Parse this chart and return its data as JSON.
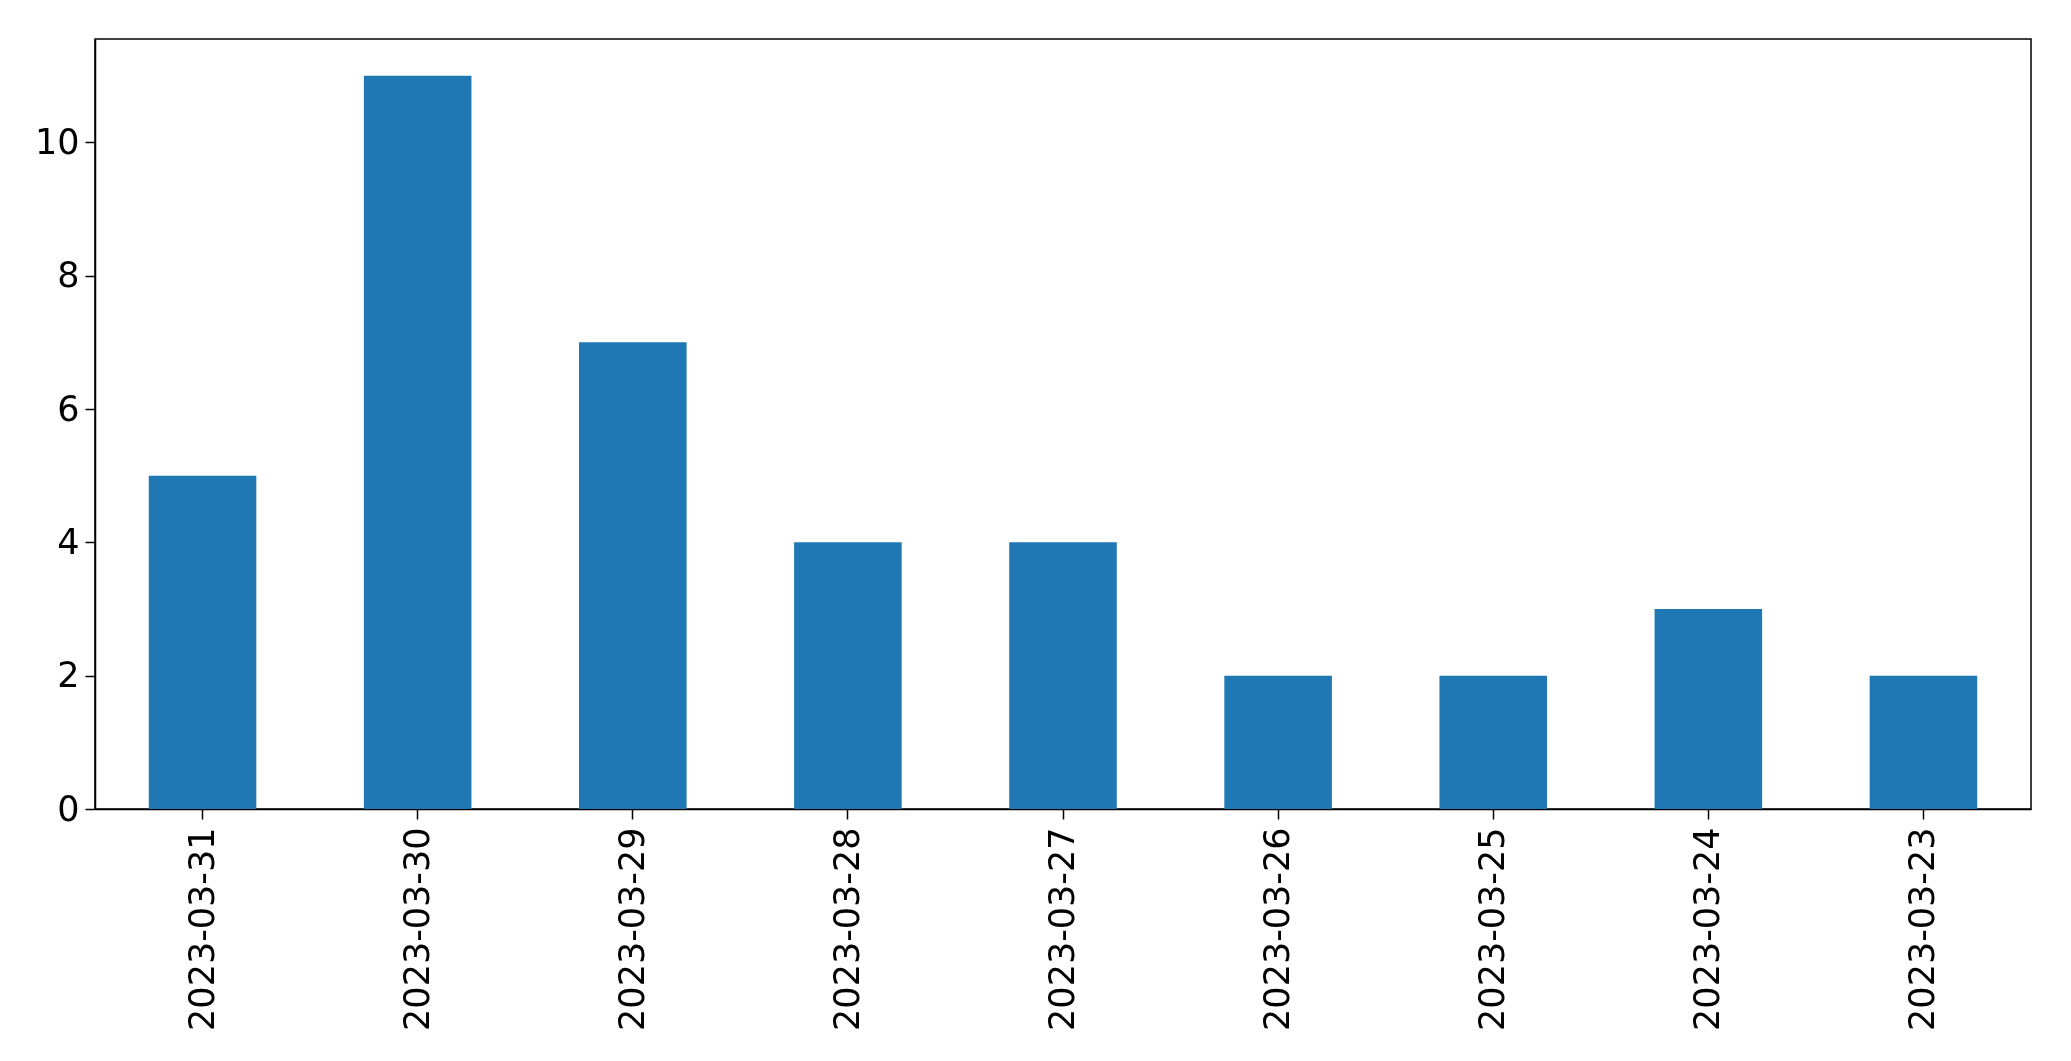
{
  "chart_data": {
    "type": "bar",
    "categories": [
      "2023-03-31",
      "2023-03-30",
      "2023-03-29",
      "2023-03-28",
      "2023-03-27",
      "2023-03-26",
      "2023-03-25",
      "2023-03-24",
      "2023-03-23"
    ],
    "values": [
      5,
      11,
      7,
      4,
      4,
      2,
      2,
      3,
      2
    ],
    "color": "#1f77b4",
    "ylim": [
      0,
      11.55
    ],
    "yticks": [
      0,
      2,
      4,
      6,
      8,
      10
    ]
  }
}
